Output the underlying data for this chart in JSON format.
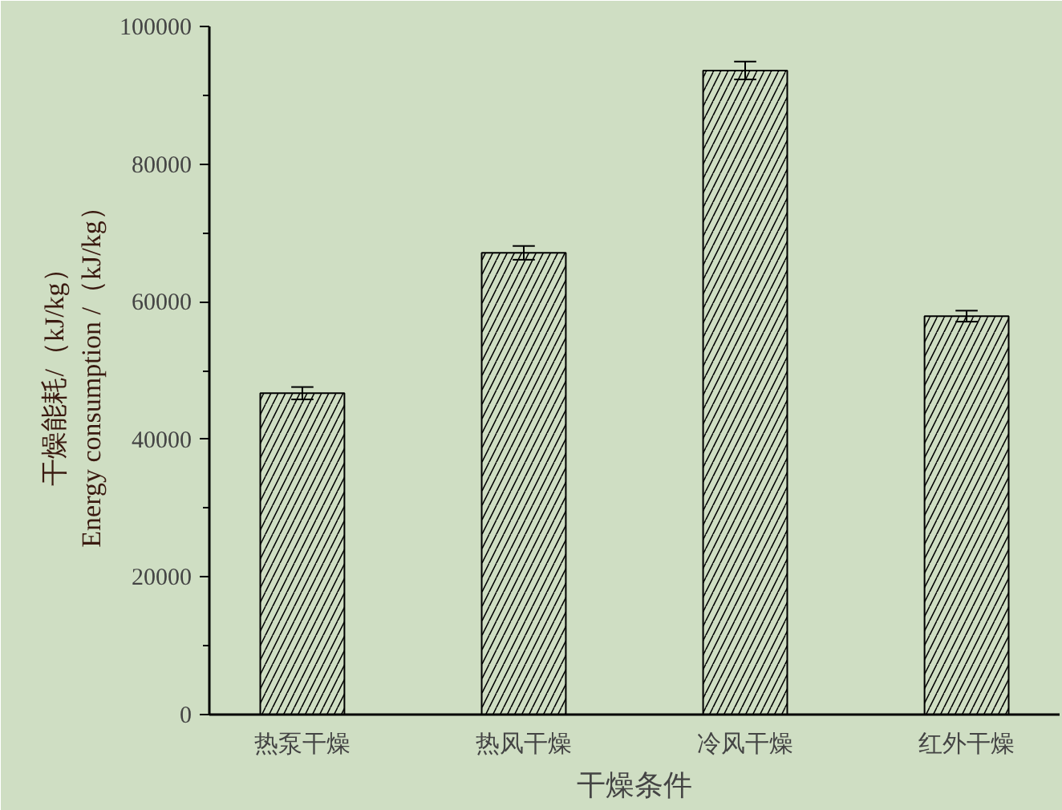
{
  "chart_data": {
    "type": "bar",
    "xlabel": "干燥条件",
    "ylabel": "干燥能耗/（kJ/kg）\nEnergy consumption /（kJ/kg）",
    "categories": [
      "热泵干燥",
      "热风干燥",
      "冷风干燥",
      "红外干燥"
    ],
    "values": [
      46700,
      67100,
      93600,
      57900
    ],
    "errors": [
      900,
      1000,
      1300,
      800
    ],
    "color": "#cfdec3",
    "ylim": [
      0,
      100000
    ],
    "yticks": [
      0,
      {
        "value": 10000,
        "label": null
      },
      20000,
      {
        "value": 30000,
        "label": null
      },
      40000,
      {
        "value": 50000,
        "label": null
      },
      60000,
      {
        "value": 70000,
        "label": null
      },
      80000,
      {
        "value": 90000,
        "label": null
      },
      100000
    ],
    "grid": false
  }
}
